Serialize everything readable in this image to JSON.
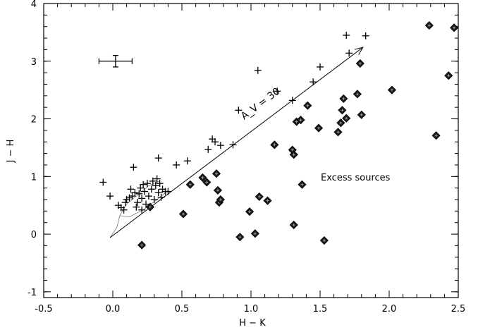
{
  "chart_data": {
    "type": "scatter",
    "title": "",
    "xlabel": "H − K",
    "ylabel": "J − H",
    "xlim": [
      -0.5,
      2.5
    ],
    "ylim": [
      -1.1,
      4.0
    ],
    "x_ticks": [
      -0.5,
      0.0,
      0.5,
      1.0,
      1.5,
      2.0,
      2.5
    ],
    "x_tick_labels": [
      "-0.5",
      "0.0",
      "0.5",
      "1.0",
      "1.5",
      "2.0",
      "2.5"
    ],
    "y_ticks": [
      -1,
      0,
      1,
      2,
      3,
      4
    ],
    "y_tick_labels": [
      "-1",
      "0",
      "1",
      "2",
      "3",
      "4"
    ],
    "grid": false,
    "series": [
      {
        "marker": "plus",
        "points": [
          [
            -0.07,
            0.9
          ],
          [
            -0.02,
            0.66
          ],
          [
            0.04,
            0.5
          ],
          [
            0.06,
            0.46
          ],
          [
            0.08,
            0.42
          ],
          [
            0.09,
            0.55
          ],
          [
            0.1,
            0.6
          ],
          [
            0.12,
            0.63
          ],
          [
            0.13,
            0.78
          ],
          [
            0.14,
            0.66
          ],
          [
            0.15,
            1.16
          ],
          [
            0.16,
            0.72
          ],
          [
            0.17,
            0.47
          ],
          [
            0.18,
            0.55
          ],
          [
            0.19,
            0.7
          ],
          [
            0.2,
            0.8
          ],
          [
            0.21,
            0.42
          ],
          [
            0.21,
            0.62
          ],
          [
            0.22,
            0.86
          ],
          [
            0.23,
            0.74
          ],
          [
            0.24,
            0.52
          ],
          [
            0.25,
            0.88
          ],
          [
            0.26,
            0.66
          ],
          [
            0.27,
            0.48
          ],
          [
            0.28,
            0.78
          ],
          [
            0.29,
            0.92
          ],
          [
            0.3,
            0.6
          ],
          [
            0.31,
            0.84
          ],
          [
            0.32,
            0.96
          ],
          [
            0.33,
            0.72
          ],
          [
            0.34,
            0.88
          ],
          [
            0.35,
            0.64
          ],
          [
            0.36,
            0.78
          ],
          [
            0.38,
            0.74
          ],
          [
            0.4,
            0.74
          ],
          [
            0.33,
            1.32
          ],
          [
            0.46,
            1.2
          ],
          [
            0.54,
            1.27
          ],
          [
            0.69,
            1.47
          ],
          [
            0.72,
            1.65
          ],
          [
            0.74,
            1.6
          ],
          [
            0.78,
            1.54
          ],
          [
            0.87,
            1.55
          ],
          [
            0.91,
            2.15
          ],
          [
            1.05,
            2.84
          ],
          [
            1.19,
            2.48
          ],
          [
            1.3,
            2.32
          ],
          [
            1.45,
            2.64
          ],
          [
            1.5,
            2.9
          ],
          [
            1.69,
            3.45
          ],
          [
            1.71,
            3.14
          ],
          [
            1.83,
            3.44
          ]
        ]
      },
      {
        "marker": "diamond",
        "points": [
          [
            0.21,
            -0.19
          ],
          [
            0.27,
            0.47
          ],
          [
            0.51,
            0.35
          ],
          [
            0.56,
            0.86
          ],
          [
            0.65,
            0.98
          ],
          [
            0.68,
            0.9
          ],
          [
            0.75,
            1.05
          ],
          [
            0.76,
            0.76
          ],
          [
            0.77,
            0.55
          ],
          [
            0.78,
            0.6
          ],
          [
            0.92,
            -0.05
          ],
          [
            0.99,
            0.39
          ],
          [
            1.03,
            0.01
          ],
          [
            1.06,
            0.65
          ],
          [
            1.12,
            0.58
          ],
          [
            1.17,
            1.55
          ],
          [
            1.3,
            1.46
          ],
          [
            1.31,
            1.38
          ],
          [
            1.31,
            0.16
          ],
          [
            1.33,
            1.95
          ],
          [
            1.36,
            1.98
          ],
          [
            1.37,
            0.86
          ],
          [
            1.41,
            2.23
          ],
          [
            1.49,
            1.84
          ],
          [
            1.53,
            -0.11
          ],
          [
            1.63,
            1.77
          ],
          [
            1.65,
            1.93
          ],
          [
            1.66,
            2.15
          ],
          [
            1.67,
            2.35
          ],
          [
            1.69,
            2.01
          ],
          [
            1.77,
            2.43
          ],
          [
            1.79,
            2.96
          ],
          [
            1.8,
            2.07
          ],
          [
            2.02,
            2.5
          ],
          [
            2.29,
            3.62
          ],
          [
            2.34,
            1.71
          ],
          [
            2.43,
            2.75
          ],
          [
            2.47,
            3.58
          ]
        ]
      }
    ],
    "reddening_vector": {
      "from": [
        -0.02,
        -0.06
      ],
      "to": [
        1.81,
        3.24
      ],
      "label": "A_V = 30"
    },
    "error_bar": {
      "x": 0.02,
      "y": 3.0,
      "xerr": 0.12,
      "yerr": 0.1
    },
    "annotation": "Excess sources"
  }
}
